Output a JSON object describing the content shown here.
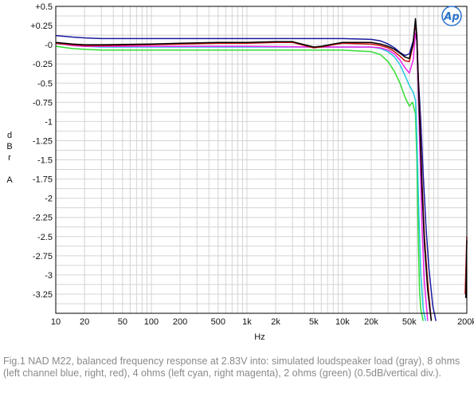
{
  "chart_data": {
    "type": "line",
    "xlabel": "Hz",
    "ylabel_chars": [
      "d",
      "B",
      "r",
      "",
      "A"
    ],
    "xscale": "log",
    "xlim": [
      10,
      200000
    ],
    "ylim": [
      -3.5,
      0.5
    ],
    "grid": true,
    "x_ticks": [
      10,
      20,
      50,
      100,
      200,
      500,
      1000,
      2000,
      5000,
      10000,
      20000,
      50000,
      200000
    ],
    "x_tick_labels": [
      "10",
      "20",
      "50",
      "100",
      "200",
      "500",
      "1k",
      "2k",
      "5k",
      "10k",
      "20k",
      "50k",
      "200k"
    ],
    "y_ticks": [
      0.5,
      0.25,
      0,
      -0.25,
      -0.5,
      -0.75,
      -1,
      -1.25,
      -1.5,
      -1.75,
      -2,
      -2.25,
      -2.5,
      -2.75,
      -3,
      -3.25
    ],
    "y_tick_labels": [
      "+0.5",
      "+0.25",
      "-0",
      "-0.25",
      "-0.5",
      "-0.75",
      "-1",
      "-1.25",
      "-1.5",
      "-1.75",
      "-2",
      "-2.25",
      "-2.5",
      "-2.75",
      "-3",
      "-3.25"
    ],
    "series": [
      {
        "key": "green",
        "color": "#33dd33",
        "points": [
          [
            10,
            -0.02
          ],
          [
            15,
            -0.05
          ],
          [
            20,
            -0.06
          ],
          [
            30,
            -0.07
          ],
          [
            100,
            -0.07
          ],
          [
            1000,
            -0.07
          ],
          [
            10000,
            -0.07
          ],
          [
            20000,
            -0.09
          ],
          [
            25000,
            -0.13
          ],
          [
            30000,
            -0.22
          ],
          [
            35000,
            -0.35
          ],
          [
            40000,
            -0.5
          ],
          [
            45000,
            -0.68
          ],
          [
            50000,
            -0.8
          ],
          [
            54000,
            -0.75
          ],
          [
            58000,
            -0.9
          ],
          [
            60000,
            -1.5
          ],
          [
            62000,
            -2.5
          ],
          [
            64000,
            -3.2
          ],
          [
            66000,
            -3.45
          ],
          [
            70000,
            -3.6
          ]
        ]
      },
      {
        "key": "cyan",
        "color": "#22c8dd",
        "points": [
          [
            10,
            0.02
          ],
          [
            15,
            -0.01
          ],
          [
            20,
            -0.02
          ],
          [
            30,
            -0.03
          ],
          [
            100,
            -0.03
          ],
          [
            1000,
            -0.03
          ],
          [
            10000,
            -0.03
          ],
          [
            20000,
            -0.03
          ],
          [
            25000,
            -0.05
          ],
          [
            30000,
            -0.09
          ],
          [
            35000,
            -0.16
          ],
          [
            40000,
            -0.26
          ],
          [
            45000,
            -0.4
          ],
          [
            50000,
            -0.53
          ],
          [
            55000,
            -0.62
          ],
          [
            58000,
            -0.72
          ],
          [
            60000,
            -1.2
          ],
          [
            63000,
            -2.2
          ],
          [
            66000,
            -3.0
          ],
          [
            70000,
            -3.45
          ],
          [
            74000,
            -3.6
          ]
        ]
      },
      {
        "key": "magenta",
        "color": "#ee22ee",
        "points": [
          [
            10,
            0.02
          ],
          [
            15,
            -0.01
          ],
          [
            20,
            -0.02
          ],
          [
            30,
            -0.02
          ],
          [
            100,
            -0.02
          ],
          [
            1000,
            -0.02
          ],
          [
            5000,
            -0.03
          ],
          [
            10000,
            -0.03
          ],
          [
            20000,
            -0.03
          ],
          [
            25000,
            -0.04
          ],
          [
            30000,
            -0.07
          ],
          [
            35000,
            -0.12
          ],
          [
            40000,
            -0.2
          ],
          [
            45000,
            -0.3
          ],
          [
            50000,
            -0.37
          ],
          [
            55000,
            -0.2
          ],
          [
            58000,
            0.15
          ],
          [
            60000,
            0.05
          ],
          [
            62000,
            -0.6
          ],
          [
            65000,
            -1.5
          ],
          [
            68000,
            -2.4
          ],
          [
            72000,
            -3.1
          ],
          [
            78000,
            -3.6
          ]
        ]
      },
      {
        "key": "blue",
        "color": "#1a1aa0",
        "points": [
          [
            10,
            0.12
          ],
          [
            15,
            0.1
          ],
          [
            20,
            0.09
          ],
          [
            30,
            0.08
          ],
          [
            100,
            0.08
          ],
          [
            1000,
            0.08
          ],
          [
            5000,
            0.08
          ],
          [
            10000,
            0.08
          ],
          [
            20000,
            0.07
          ],
          [
            25000,
            0.05
          ],
          [
            30000,
            0.01
          ],
          [
            35000,
            -0.04
          ],
          [
            40000,
            -0.1
          ],
          [
            45000,
            -0.14
          ],
          [
            50000,
            -0.12
          ],
          [
            55000,
            0.05
          ],
          [
            58000,
            0.28
          ],
          [
            60000,
            0.05
          ],
          [
            62000,
            -0.4
          ],
          [
            66000,
            -1.0
          ],
          [
            70000,
            -1.7
          ],
          [
            75000,
            -2.4
          ],
          [
            80000,
            -2.9
          ],
          [
            88000,
            -3.4
          ],
          [
            95000,
            -3.6
          ]
        ]
      },
      {
        "key": "red",
        "color": "#cc1111",
        "points": [
          [
            10,
            0.02
          ],
          [
            15,
            0.0
          ],
          [
            20,
            -0.01
          ],
          [
            30,
            -0.01
          ],
          [
            100,
            0.0
          ],
          [
            200,
            0.01
          ],
          [
            500,
            0.02
          ],
          [
            1000,
            0.02
          ],
          [
            2000,
            0.03
          ],
          [
            3000,
            0.03
          ],
          [
            4000,
            -0.01
          ],
          [
            5000,
            -0.04
          ],
          [
            6000,
            -0.03
          ],
          [
            8000,
            0.0
          ],
          [
            10000,
            0.02
          ],
          [
            20000,
            0.01
          ],
          [
            25000,
            -0.01
          ],
          [
            30000,
            -0.04
          ],
          [
            35000,
            -0.09
          ],
          [
            40000,
            -0.15
          ],
          [
            45000,
            -0.21
          ],
          [
            50000,
            -0.22
          ],
          [
            55000,
            0.0
          ],
          [
            58000,
            0.3
          ],
          [
            60000,
            0.1
          ],
          [
            62000,
            -0.4
          ],
          [
            65000,
            -1.1
          ],
          [
            68000,
            -1.8
          ],
          [
            72000,
            -2.5
          ],
          [
            78000,
            -3.1
          ],
          [
            85000,
            -3.6
          ]
        ]
      },
      {
        "key": "black",
        "color": "#000000",
        "points": [
          [
            10,
            0.03
          ],
          [
            15,
            0.01
          ],
          [
            20,
            0.0
          ],
          [
            30,
            0.0
          ],
          [
            100,
            0.01
          ],
          [
            200,
            0.02
          ],
          [
            500,
            0.03
          ],
          [
            1000,
            0.03
          ],
          [
            2000,
            0.04
          ],
          [
            3000,
            0.04
          ],
          [
            4000,
            0.0
          ],
          [
            5000,
            -0.03
          ],
          [
            6000,
            -0.02
          ],
          [
            8000,
            0.01
          ],
          [
            10000,
            0.03
          ],
          [
            20000,
            0.03
          ],
          [
            25000,
            0.01
          ],
          [
            30000,
            -0.02
          ],
          [
            35000,
            -0.06
          ],
          [
            40000,
            -0.11
          ],
          [
            45000,
            -0.16
          ],
          [
            50000,
            -0.18
          ],
          [
            55000,
            0.02
          ],
          [
            58000,
            0.34
          ],
          [
            60000,
            0.1
          ],
          [
            62000,
            -0.45
          ],
          [
            65000,
            -1.2
          ],
          [
            68000,
            -1.9
          ],
          [
            72000,
            -2.6
          ],
          [
            78000,
            -3.2
          ],
          [
            85000,
            -3.6
          ]
        ]
      },
      {
        "key": "red-tail",
        "color": "#cc1111",
        "points": [
          [
            192000,
            -3.25
          ],
          [
            200000,
            -2.5
          ]
        ]
      },
      {
        "key": "black-tail",
        "color": "#000000",
        "points": [
          [
            195000,
            -3.3
          ],
          [
            200000,
            -2.55
          ]
        ]
      }
    ]
  },
  "logo": {
    "text": "Ap"
  },
  "caption": "Fig.1 NAD M22, balanced frequency response at 2.83V into: simulated loudspeaker load (gray), 8 ohms (left channel blue, right, red), 4 ohms (left cyan, right magenta), 2 ohms (green) (0.5dB/vertical div.)."
}
